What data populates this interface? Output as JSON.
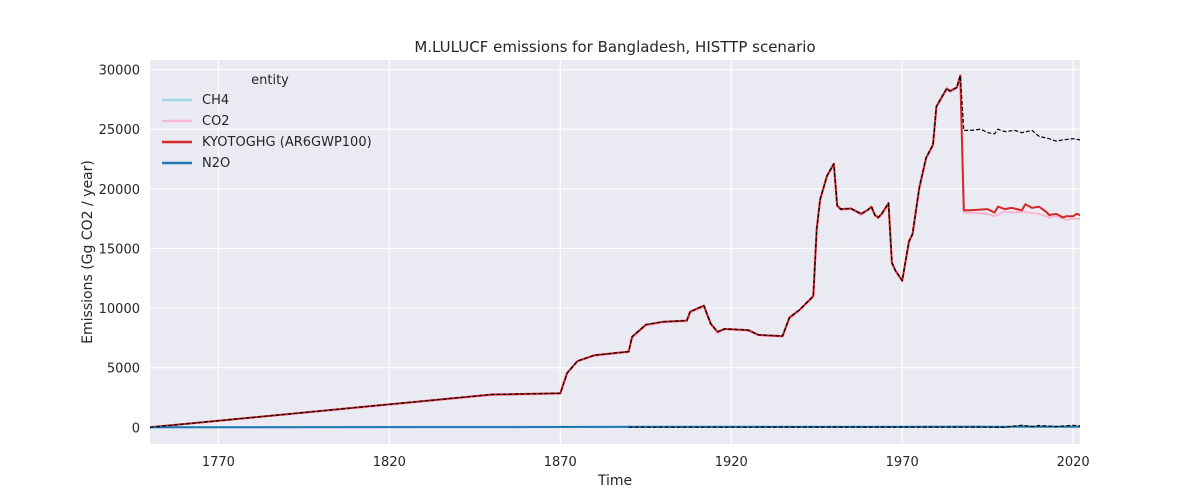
{
  "chart_data": {
    "type": "line",
    "title": "M.LULUCF emissions for Bangladesh, HISTTP scenario",
    "xlabel": "Time",
    "ylabel": "Emissions (Gg CO2 / year)",
    "xlim": [
      1750,
      2022
    ],
    "ylim": [
      -1400,
      30800
    ],
    "xticks": [
      1770,
      1820,
      1870,
      1920,
      1970,
      2020
    ],
    "yticks": [
      0,
      5000,
      10000,
      15000,
      20000,
      25000,
      30000
    ],
    "grid": true,
    "legend": {
      "title": "entity",
      "position": "top-left"
    },
    "colors": {
      "background": "#eaeaf2",
      "grid": "#ffffff",
      "CH4": "#9edae5",
      "CO2": "#f7b6d2",
      "KYOTOGHG (AR6GWP100)": "#d62728",
      "N2O": "#1f77b4",
      "reference": "#000000"
    },
    "series": [
      {
        "name": "CH4",
        "x": [
          1750,
          1850,
          1890,
          1990,
          2000,
          2005,
          2010,
          2015,
          2020,
          2022
        ],
        "y": [
          0,
          50,
          60,
          60,
          30,
          120,
          50,
          80,
          60,
          60
        ]
      },
      {
        "name": "CO2",
        "x": [
          1750,
          1850,
          1870,
          1872,
          1875,
          1880,
          1890,
          1891,
          1895,
          1900,
          1907,
          1908,
          1912,
          1914,
          1916,
          1918,
          1925,
          1928,
          1935,
          1937,
          1940,
          1944,
          1945,
          1946,
          1948,
          1950,
          1951,
          1952,
          1955,
          1958,
          1960,
          1961,
          1962,
          1963,
          1964,
          1966,
          1967,
          1968,
          1970,
          1972,
          1973,
          1975,
          1977,
          1979,
          1980,
          1982,
          1983,
          1984,
          1986,
          1987,
          1988,
          1990,
          1995,
          1997,
          2000,
          2002,
          2005,
          2007,
          2010,
          2013,
          2015,
          2018,
          2020,
          2022
        ],
        "y": [
          0,
          2700,
          2800,
          4500,
          5500,
          6000,
          6300,
          7500,
          8500,
          8800,
          8900,
          9600,
          10100,
          8600,
          7900,
          8200,
          8100,
          7700,
          7600,
          9100,
          9800,
          10900,
          16500,
          19000,
          21000,
          22000,
          18500,
          18200,
          18300,
          17800,
          18200,
          18400,
          17700,
          17500,
          17800,
          18700,
          13700,
          13100,
          12200,
          15500,
          16100,
          20000,
          22500,
          23600,
          26800,
          27800,
          28300,
          28100,
          28400,
          29400,
          18000,
          18000,
          17900,
          17700,
          18100,
          18000,
          18100,
          18000,
          17900,
          17600,
          17700,
          17400,
          17500,
          17500
        ]
      },
      {
        "name": "KYOTOGHG (AR6GWP100)",
        "x": [
          1750,
          1850,
          1870,
          1872,
          1875,
          1880,
          1890,
          1891,
          1895,
          1900,
          1907,
          1908,
          1912,
          1914,
          1916,
          1918,
          1925,
          1928,
          1935,
          1937,
          1940,
          1944,
          1945,
          1946,
          1948,
          1950,
          1951,
          1952,
          1955,
          1958,
          1960,
          1961,
          1962,
          1963,
          1964,
          1966,
          1967,
          1968,
          1970,
          1972,
          1973,
          1975,
          1977,
          1979,
          1980,
          1982,
          1983,
          1984,
          1986,
          1987,
          1988,
          1990,
          1995,
          1997,
          1998,
          2000,
          2002,
          2005,
          2006,
          2008,
          2010,
          2012,
          2013,
          2015,
          2017,
          2018,
          2020,
          2021,
          2022
        ],
        "y": [
          0,
          2750,
          2850,
          4550,
          5550,
          6050,
          6350,
          7600,
          8600,
          8850,
          8950,
          9700,
          10200,
          8700,
          8000,
          8250,
          8150,
          7750,
          7650,
          9200,
          9850,
          11000,
          16600,
          19100,
          21100,
          22100,
          18600,
          18300,
          18350,
          17900,
          18250,
          18500,
          17800,
          17600,
          17900,
          18800,
          13800,
          13150,
          12300,
          15600,
          16200,
          20100,
          22600,
          23700,
          26900,
          27900,
          28400,
          28200,
          28500,
          29500,
          18200,
          18200,
          18300,
          18000,
          18500,
          18300,
          18400,
          18200,
          18700,
          18400,
          18500,
          18100,
          17800,
          17900,
          17600,
          17700,
          17700,
          17900,
          17800
        ]
      },
      {
        "name": "N2O",
        "x": [
          1750,
          1850,
          1890,
          1990,
          2000,
          2005,
          2010,
          2015,
          2020,
          2022
        ],
        "y": [
          0,
          20,
          30,
          40,
          30,
          60,
          40,
          50,
          40,
          40
        ]
      },
      {
        "x": [
          1750,
          1850,
          1870,
          1872,
          1875,
          1880,
          1890,
          1891,
          1895,
          1900,
          1907,
          1908,
          1912,
          1914,
          1916,
          1918,
          1925,
          1928,
          1935,
          1937,
          1940,
          1944,
          1945,
          1946,
          1948,
          1950,
          1951,
          1952,
          1955,
          1958,
          1960,
          1961,
          1962,
          1963,
          1964,
          1966,
          1967,
          1968,
          1970,
          1972,
          1973,
          1975,
          1977,
          1979,
          1980,
          1982,
          1983,
          1984,
          1986,
          1987,
          1988,
          1990,
          1993,
          1995,
          1997,
          1998,
          2000,
          2003,
          2005,
          2008,
          2010,
          2013,
          2015,
          2017,
          2020,
          2022
        ],
        "y": [
          0,
          2750,
          2850,
          4550,
          5550,
          6050,
          6350,
          7600,
          8600,
          8850,
          8950,
          9700,
          10200,
          8700,
          8000,
          8250,
          8150,
          7750,
          7650,
          9200,
          9850,
          11000,
          16600,
          19100,
          21100,
          22100,
          18600,
          18300,
          18350,
          17900,
          18250,
          18500,
          17800,
          17600,
          17900,
          18800,
          13800,
          13150,
          12300,
          15600,
          16200,
          20100,
          22600,
          23700,
          26900,
          27900,
          28400,
          28200,
          28500,
          29500,
          24900,
          24900,
          25000,
          24700,
          24600,
          25000,
          24800,
          24900,
          24700,
          24900,
          24400,
          24200,
          24000,
          24100,
          24200,
          24100
        ]
      },
      {
        "x": [
          1890,
          1990,
          2000,
          2005,
          2008,
          2010,
          2015,
          2020,
          2022
        ],
        "y": [
          10,
          20,
          0,
          180,
          60,
          150,
          60,
          170,
          120
        ]
      }
    ]
  }
}
